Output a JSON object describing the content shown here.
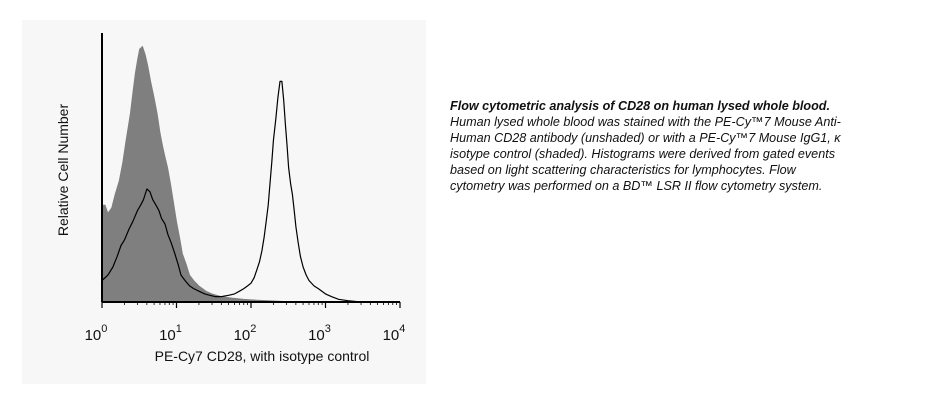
{
  "chart_data": {
    "type": "area",
    "xscale": "log",
    "xlim": [
      1,
      10000
    ],
    "x_ticks": [
      {
        "base": "10",
        "exp": "0"
      },
      {
        "base": "10",
        "exp": "1"
      },
      {
        "base": "10",
        "exp": "2"
      },
      {
        "base": "10",
        "exp": "3"
      },
      {
        "base": "10",
        "exp": "4"
      }
    ],
    "xlabel": "PE-Cy7 CD28, with isotype control",
    "ylabel": "Relative Cell Number",
    "ylim": [
      0,
      100
    ],
    "grid": false,
    "series": [
      {
        "style": "shaded",
        "color": "#7f7f7f",
        "x": [
          1,
          1.1,
          1.2,
          1.35,
          1.5,
          1.7,
          1.9,
          2.1,
          2.4,
          2.6,
          2.8,
          3,
          3.2,
          3.5,
          3.8,
          4.1,
          4.5,
          5,
          5.5,
          6,
          6.5,
          7,
          7.6,
          8.3,
          9,
          10,
          11,
          12,
          13.5,
          15,
          17,
          20,
          25,
          30,
          40,
          55,
          80,
          120,
          200,
          400
        ],
        "y": [
          36,
          36,
          33,
          35,
          40,
          45,
          52,
          60,
          70,
          78,
          85,
          90,
          94,
          95,
          92,
          88,
          82,
          76,
          70,
          63,
          58,
          54,
          50,
          44,
          38,
          30,
          24,
          18,
          14,
          10,
          8,
          6,
          4,
          3,
          2,
          1.5,
          1,
          0.7,
          0.4,
          0
        ]
      },
      {
        "style": "unshaded",
        "color": "#000000",
        "x": [
          1,
          1.2,
          1.4,
          1.6,
          1.8,
          2,
          2.3,
          2.6,
          3,
          3.3,
          3.6,
          4,
          4.4,
          4.8,
          5.3,
          5.8,
          6.3,
          7,
          7.7,
          8.5,
          9.5,
          10.5,
          11.5,
          13,
          15,
          17,
          20,
          24,
          28,
          33,
          40,
          50,
          60,
          70,
          80,
          90,
          100,
          110,
          120,
          130,
          140,
          150,
          160,
          170,
          180,
          190,
          200,
          215,
          230,
          245,
          260,
          275,
          290,
          305,
          320,
          340,
          360,
          380,
          400,
          430,
          460,
          500,
          550,
          600,
          700,
          800,
          1000,
          1200,
          1500,
          2000,
          3000,
          5000,
          10000
        ],
        "y": [
          8,
          10,
          13,
          17,
          21,
          23,
          27,
          30,
          34,
          36,
          38,
          42,
          41,
          38,
          36,
          34,
          31,
          29,
          25,
          22,
          18,
          14,
          10,
          8,
          6,
          5,
          4,
          3,
          2.5,
          2,
          2,
          2.5,
          3,
          4,
          5,
          6,
          7,
          9,
          12,
          15,
          19,
          24,
          30,
          36,
          44,
          52,
          60,
          68,
          76,
          82,
          82,
          75,
          66,
          58,
          50,
          44,
          40,
          34,
          28,
          22,
          17,
          13,
          10,
          8,
          6,
          5,
          3,
          2,
          1,
          0.5,
          0,
          0,
          0
        ]
      }
    ]
  },
  "caption": {
    "title": "Flow cytometric analysis of CD28 on human lysed whole blood.",
    "body": "Human lysed whole blood was stained with the PE-Cy™7 Mouse Anti-Human CD28 antibody (unshaded) or with a PE-Cy™7 Mouse IgG1, κ isotype control (shaded). Histograms were derived from gated events based on light scattering characteristics for lymphocytes. Flow cytometry was performed on a BD™ LSR II flow cytometry system."
  }
}
